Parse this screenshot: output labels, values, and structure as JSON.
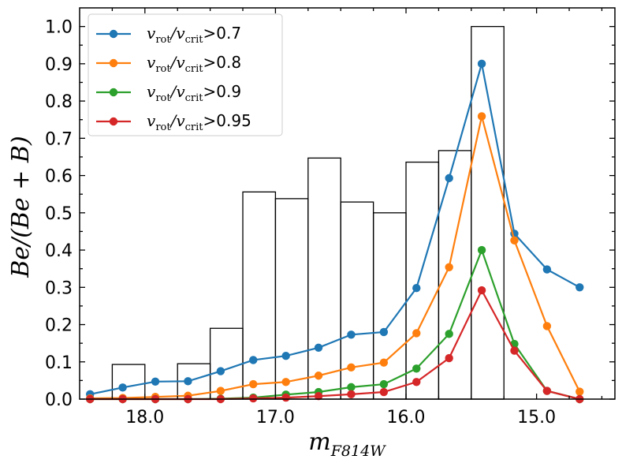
{
  "chart_data": {
    "type": "line",
    "xlabel": "m_{F814W}",
    "ylabel": "Be/(Be+B)",
    "xlim": [
      18.5,
      14.4
    ],
    "ylim": [
      0.0,
      1.05
    ],
    "xticks": [
      18.0,
      17.0,
      16.0,
      15.0
    ],
    "yticks": [
      0.0,
      0.1,
      0.2,
      0.3,
      0.4,
      0.5,
      0.6,
      0.7,
      0.8,
      0.9,
      1.0
    ],
    "histogram": {
      "edges": [
        18.25,
        18.0,
        17.75,
        17.5,
        17.25,
        17.0,
        16.75,
        16.5,
        16.25,
        16.0,
        15.75,
        15.5,
        15.25
      ],
      "values": [
        0.093,
        0.0,
        0.095,
        0.19,
        0.556,
        0.538,
        0.647,
        0.529,
        0.5,
        0.636,
        0.667,
        1.0
      ]
    },
    "x": [
      18.42,
      18.17,
      17.92,
      17.67,
      17.42,
      17.17,
      16.92,
      16.67,
      16.42,
      16.17,
      15.92,
      15.67,
      15.42,
      15.17,
      14.92,
      14.67
    ],
    "series": [
      {
        "name": "v_rot/v_crit>0.7",
        "label_prefix": "v",
        "label_sub1": "rot",
        "label_mid": "/v",
        "label_sub2": "crit",
        "label_suffix": ">0.7",
        "color": "#1f77b4",
        "values": [
          0.013,
          0.031,
          0.047,
          0.048,
          0.075,
          0.105,
          0.116,
          0.138,
          0.173,
          0.18,
          0.298,
          0.593,
          0.9,
          0.444,
          0.348,
          0.3
        ]
      },
      {
        "name": "v_rot/v_crit>0.8",
        "label_prefix": "v",
        "label_sub1": "rot",
        "label_mid": "/v",
        "label_sub2": "crit",
        "label_suffix": ">0.8",
        "color": "#ff7f0e",
        "values": [
          0.002,
          0.003,
          0.006,
          0.009,
          0.022,
          0.04,
          0.046,
          0.063,
          0.085,
          0.098,
          0.177,
          0.354,
          0.759,
          0.426,
          0.196,
          0.02
        ]
      },
      {
        "name": "v_rot/v_crit>0.9",
        "label_prefix": "v",
        "label_sub1": "rot",
        "label_mid": "/v",
        "label_sub2": "crit",
        "label_suffix": ">0.9",
        "color": "#2ca02c",
        "values": [
          0.0,
          0.0,
          0.0,
          0.0,
          0.001,
          0.004,
          0.012,
          0.019,
          0.032,
          0.04,
          0.082,
          0.175,
          0.4,
          0.148,
          0.022,
          0.0
        ]
      },
      {
        "name": "v_rot/v_crit>0.95",
        "label_prefix": "v",
        "label_sub1": "rot",
        "label_mid": "/v",
        "label_sub2": "crit",
        "label_suffix": ">0.95",
        "color": "#d62728",
        "values": [
          0.0,
          0.0,
          0.0,
          0.0,
          0.0,
          0.002,
          0.004,
          0.008,
          0.013,
          0.019,
          0.046,
          0.11,
          0.292,
          0.13,
          0.022,
          0.0
        ]
      }
    ],
    "legend_position": "top-left"
  }
}
